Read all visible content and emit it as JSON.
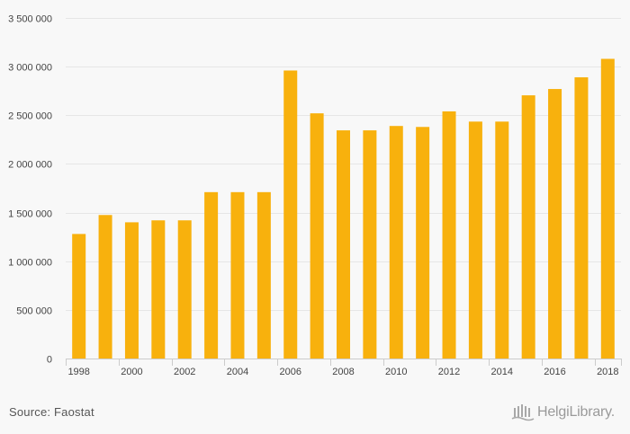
{
  "chart_data": {
    "type": "bar",
    "categories": [
      "1998",
      "1999",
      "2000",
      "2001",
      "2002",
      "2003",
      "2004",
      "2005",
      "2006",
      "2007",
      "2008",
      "2009",
      "2010",
      "2011",
      "2012",
      "2013",
      "2014",
      "2015",
      "2016",
      "2017",
      "2018"
    ],
    "values": [
      1280000,
      1475000,
      1400000,
      1420000,
      1420000,
      1710000,
      1710000,
      1710000,
      2960000,
      2520000,
      2345000,
      2345000,
      2390000,
      2380000,
      2540000,
      2435000,
      2435000,
      2705000,
      2770000,
      2890000,
      3080000
    ],
    "x_tick_labels": [
      "1998",
      "2000",
      "2002",
      "2004",
      "2006",
      "2008",
      "2010",
      "2012",
      "2014",
      "2016",
      "2018"
    ],
    "y_ticks": [
      0,
      500000,
      1000000,
      1500000,
      2000000,
      2500000,
      3000000,
      3500000
    ],
    "y_tick_labels": [
      "0",
      "500 000",
      "1 000 000",
      "1 500 000",
      "2 000 000",
      "2 500 000",
      "3 000 000",
      "3 500 000"
    ],
    "ylim": [
      0,
      3500000
    ],
    "grid": true,
    "legend": "none",
    "bar_color": "#f8b10d",
    "grid_color": "#e6e6e6",
    "axis_color": "#cccccc"
  },
  "footer": {
    "source": "Source: Faostat",
    "logo_text": "HelgiLibrary."
  }
}
